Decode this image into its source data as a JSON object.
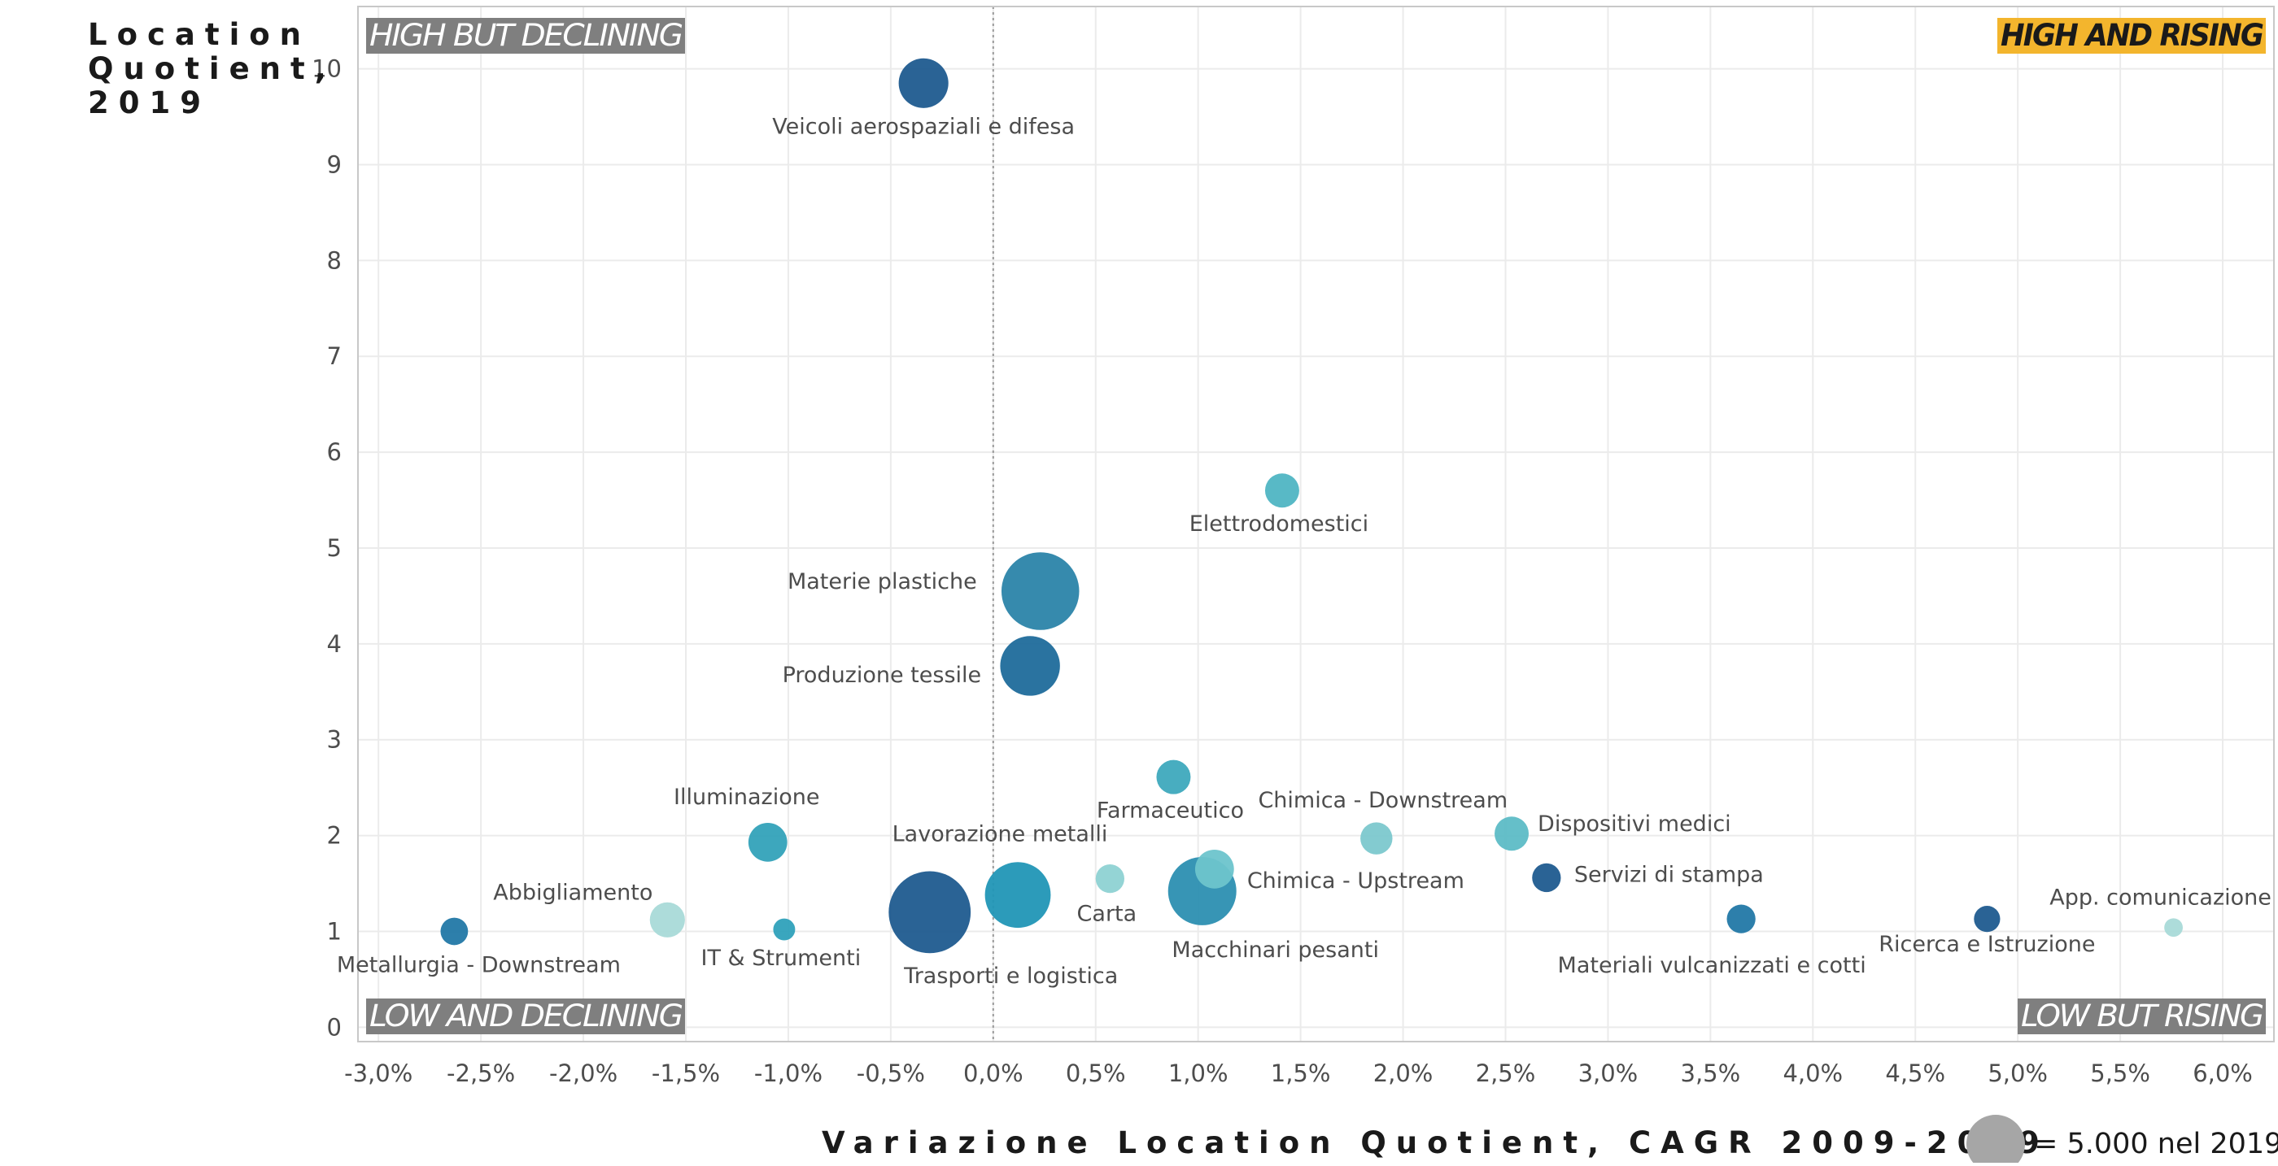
{
  "chart_data": {
    "type": "scatter",
    "ylabel_lines": [
      "Location",
      "Quotient,",
      "2019"
    ],
    "xlabel": "Variazione Location Quotient, CAGR 2009-2019",
    "xlim": [
      -3.1,
      6.25
    ],
    "ylim": [
      -0.15,
      10.65
    ],
    "x_ticks": [
      -3.0,
      -2.5,
      -2.0,
      -1.5,
      -1.0,
      -0.5,
      0.0,
      0.5,
      1.0,
      1.5,
      2.0,
      2.5,
      3.0,
      3.5,
      4.0,
      4.5,
      5.0,
      5.5,
      6.0
    ],
    "x_tick_labels": [
      "-3,0%",
      "-2,5%",
      "-2,0%",
      "-1,5%",
      "-1,0%",
      "-0,5%",
      "0,0%",
      "0,5%",
      "1,0%",
      "1,5%",
      "2,0%",
      "2,5%",
      "3,0%",
      "3,5%",
      "4,0%",
      "4,5%",
      "5,0%",
      "5,5%",
      "6,0%"
    ],
    "y_ticks": [
      0,
      1,
      2,
      3,
      4,
      5,
      6,
      7,
      8,
      9,
      10
    ],
    "y_tick_labels": [
      "0",
      "1",
      "2",
      "3",
      "4",
      "5",
      "6",
      "7",
      "8",
      "9",
      "10"
    ],
    "grid": true,
    "reference_line_x": 0,
    "quadrant_labels": {
      "top_left": "HIGH BUT DECLINING",
      "top_right": "HIGH AND RISING",
      "bottom_left": "LOW AND DECLINING",
      "bottom_right": "LOW BUT RISING"
    },
    "quadrant_colors": {
      "top_left": "#7f7f7f",
      "top_right": "#f3b52d",
      "bottom_left": "#7f7f7f",
      "bottom_right": "#7f7f7f"
    },
    "size_legend": {
      "label": "= 5.000 nel 2019",
      "employees": 5000,
      "color": "#a6a6a6"
    },
    "points": [
      {
        "name": "Veicoli aerospaziali e difesa",
        "x": -0.34,
        "y": 9.85,
        "employees": 3600,
        "color": "#1f5b8f"
      },
      {
        "name": "Elettrodomestici",
        "x": 1.41,
        "y": 5.6,
        "employees": 1700,
        "color": "#4fb5c3"
      },
      {
        "name": "Materie plastiche",
        "x": 0.23,
        "y": 4.55,
        "employees": 8800,
        "color": "#2b84a9"
      },
      {
        "name": "Produzione tessile",
        "x": 0.18,
        "y": 3.77,
        "employees": 5200,
        "color": "#1f6c9b"
      },
      {
        "name": "Farmaceutico",
        "x": 0.88,
        "y": 2.61,
        "employees": 1700,
        "color": "#3ea9bd"
      },
      {
        "name": "Illuminazione",
        "x": -1.1,
        "y": 1.93,
        "employees": 2200,
        "color": "#33a2b9"
      },
      {
        "name": "Chimica - Downstream",
        "x": 1.87,
        "y": 1.97,
        "employees": 1500,
        "color": "#7cc8ce"
      },
      {
        "name": "Dispositivi medici",
        "x": 2.53,
        "y": 2.02,
        "employees": 1700,
        "color": "#5dbcc6"
      },
      {
        "name": "Lavorazione metalli",
        "x": 0.12,
        "y": 1.38,
        "employees": 6300,
        "color": "#2196b6"
      },
      {
        "name": "Carta",
        "x": 0.57,
        "y": 1.55,
        "employees": 1200,
        "color": "#8ed2d3"
      },
      {
        "name": "Chimica - Upstream",
        "x": 1.08,
        "y": 1.65,
        "employees": 2200,
        "color": "#6dc4cc"
      },
      {
        "name": "Macchinari pesanti",
        "x": 1.02,
        "y": 1.42,
        "employees": 6800,
        "color": "#2c8fb1"
      },
      {
        "name": "Servizi di stampa",
        "x": 2.7,
        "y": 1.56,
        "employees": 1200,
        "color": "#1f5b8f"
      },
      {
        "name": "Abbigliamento",
        "x": -1.59,
        "y": 1.12,
        "employees": 1800,
        "color": "#a9dad8"
      },
      {
        "name": "Metallurgia - Downstream",
        "x": -2.63,
        "y": 1.0,
        "employees": 1100,
        "color": "#2278a6"
      },
      {
        "name": "IT & Strumenti",
        "x": -1.02,
        "y": 1.02,
        "employees": 700,
        "color": "#2fa1bb"
      },
      {
        "name": "Trasporti e logistica",
        "x": -0.31,
        "y": 1.2,
        "employees": 9800,
        "color": "#1f5b8f"
      },
      {
        "name": "Materiali vulcanizzati e cotti",
        "x": 3.65,
        "y": 1.13,
        "employees": 1200,
        "color": "#2278a6"
      },
      {
        "name": "Ricerca e Istruzione",
        "x": 4.85,
        "y": 1.13,
        "employees": 1000,
        "color": "#1f5b8f"
      },
      {
        "name": "App. comunicazione",
        "x": 5.76,
        "y": 1.04,
        "employees": 500,
        "color": "#a9dad8"
      }
    ]
  }
}
